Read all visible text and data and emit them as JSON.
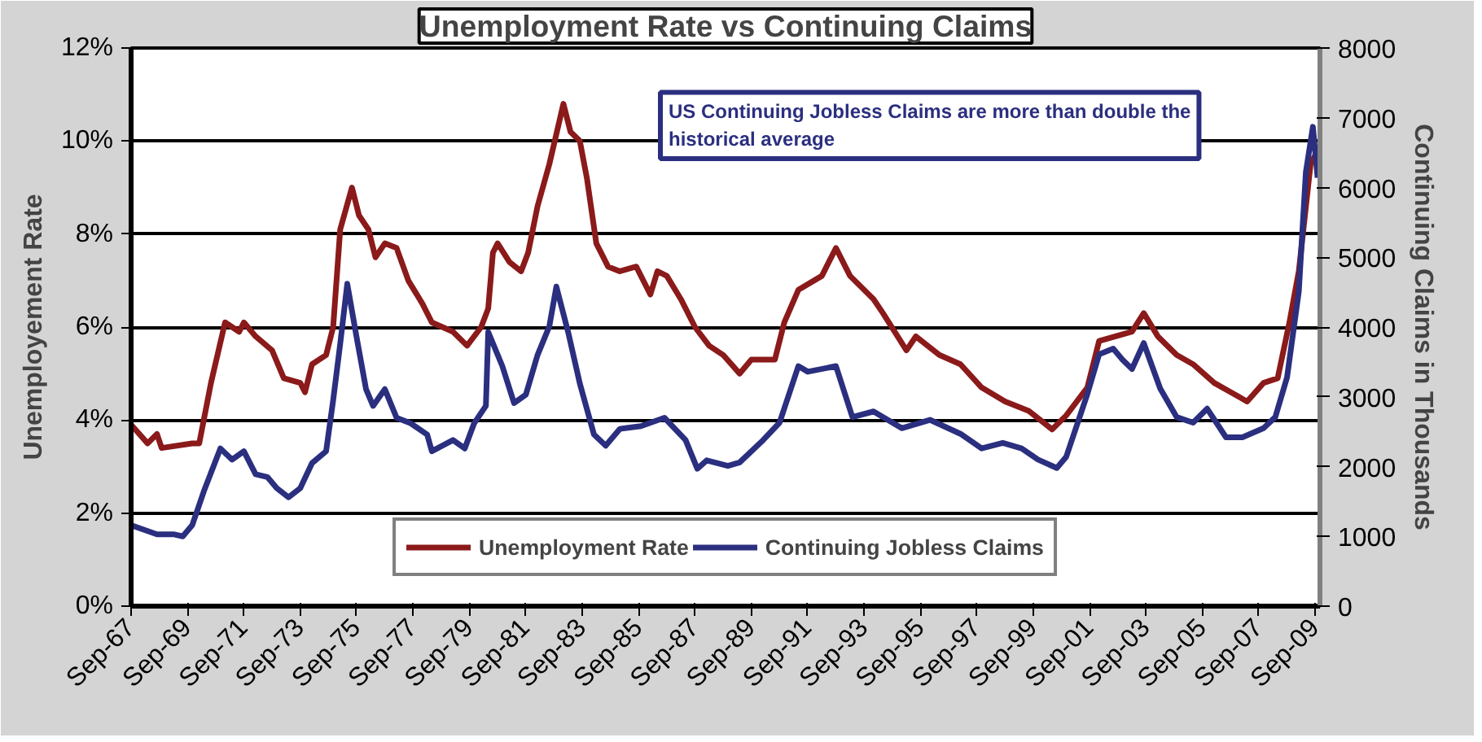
{
  "chart_data": {
    "type": "line",
    "title": "Unemployment Rate vs Continuing Claims",
    "ylabel": "Unemployement Rate",
    "y2label": "Continuing Claims in Thousands",
    "annotations": [
      "US Continuing Jobless Claims are more than double the historical average"
    ],
    "xlim": [
      "1967-09",
      "2009-11"
    ],
    "xticks": [
      {
        "value": "1967-09",
        "label": "Sep-67"
      },
      {
        "value": "1969-09",
        "label": "Sep-69"
      },
      {
        "value": "1971-09",
        "label": "Sep-71"
      },
      {
        "value": "1973-09",
        "label": "Sep-73"
      },
      {
        "value": "1975-09",
        "label": "Sep-75"
      },
      {
        "value": "1977-09",
        "label": "Sep-77"
      },
      {
        "value": "1979-09",
        "label": "Sep-79"
      },
      {
        "value": "1981-09",
        "label": "Sep-81"
      },
      {
        "value": "1983-09",
        "label": "Sep-83"
      },
      {
        "value": "1985-09",
        "label": "Sep-85"
      },
      {
        "value": "1987-09",
        "label": "Sep-87"
      },
      {
        "value": "1989-09",
        "label": "Sep-89"
      },
      {
        "value": "1991-09",
        "label": "Sep-91"
      },
      {
        "value": "1993-09",
        "label": "Sep-93"
      },
      {
        "value": "1995-09",
        "label": "Sep-95"
      },
      {
        "value": "1997-09",
        "label": "Sep-97"
      },
      {
        "value": "1999-09",
        "label": "Sep-99"
      },
      {
        "value": "2001-09",
        "label": "Sep-01"
      },
      {
        "value": "2003-09",
        "label": "Sep-03"
      },
      {
        "value": "2005-09",
        "label": "Sep-05"
      },
      {
        "value": "2007-09",
        "label": "Sep-07"
      },
      {
        "value": "2009-09",
        "label": "Sep-09"
      }
    ],
    "ylim": [
      0,
      12
    ],
    "yticks": [
      {
        "value": 0,
        "label": "0%"
      },
      {
        "value": 2,
        "label": "2%"
      },
      {
        "value": 4,
        "label": "4%"
      },
      {
        "value": 6,
        "label": "6%"
      },
      {
        "value": 8,
        "label": "8%"
      },
      {
        "value": 10,
        "label": "10%"
      },
      {
        "value": 12,
        "label": "12%"
      }
    ],
    "y2lim": [
      0,
      8000
    ],
    "y2ticks": [
      0,
      1000,
      2000,
      3000,
      4000,
      5000,
      6000,
      7000,
      8000
    ],
    "grid": "y",
    "legend": "bottom",
    "line_style": "solid",
    "marker": "none",
    "series": [
      {
        "name": "Unemployment Rate",
        "color": "#8b1a1a",
        "x": [
          "1967-09",
          "1968-04",
          "1968-08",
          "1968-10",
          "1969-11",
          "1970-02",
          "1970-07",
          "1971-01",
          "1971-07",
          "1971-09",
          "1972-02",
          "1972-09",
          "1973-02",
          "1973-09",
          "1973-11",
          "1974-02",
          "1974-08",
          "1974-11",
          "1975-02",
          "1975-07",
          "1975-10",
          "1976-02",
          "1976-05",
          "1976-09",
          "1977-02",
          "1977-07",
          "1978-01",
          "1978-05",
          "1979-02",
          "1979-08",
          "1980-02",
          "1980-05",
          "1980-07",
          "1980-09",
          "1981-02",
          "1981-07",
          "1981-10",
          "1982-02",
          "1982-07",
          "1983-01",
          "1983-04",
          "1983-08",
          "1983-11",
          "1984-03",
          "1984-08",
          "1985-01",
          "1985-08",
          "1986-02",
          "1986-05",
          "1986-09",
          "1987-03",
          "1987-09",
          "1988-03",
          "1988-09",
          "1989-04",
          "1989-09",
          "1990-07",
          "1990-11",
          "1991-05",
          "1992-03",
          "1992-09",
          "1993-03",
          "1994-01",
          "1994-05",
          "1995-03",
          "1995-07",
          "1996-05",
          "1997-02",
          "1997-11",
          "1998-09",
          "1999-07",
          "2000-05",
          "2000-11",
          "2001-08",
          "2002-01",
          "2002-08",
          "2003-03",
          "2003-08",
          "2004-02",
          "2004-10",
          "2005-05",
          "2006-02",
          "2006-09",
          "2007-04",
          "2007-11",
          "2008-05",
          "2008-10",
          "2009-02",
          "2009-07",
          "2009-10"
        ],
        "values": [
          3.9,
          3.5,
          3.7,
          3.4,
          3.5,
          3.5,
          4.8,
          6.1,
          5.9,
          6.1,
          5.8,
          5.5,
          4.9,
          4.8,
          4.6,
          5.2,
          5.4,
          6.0,
          8.1,
          9.0,
          8.4,
          8.1,
          7.5,
          7.8,
          7.7,
          7.0,
          6.5,
          6.1,
          5.9,
          5.6,
          6.0,
          6.4,
          7.6,
          7.8,
          7.4,
          7.2,
          7.6,
          8.6,
          9.5,
          10.8,
          10.2,
          10.0,
          9.2,
          7.8,
          7.3,
          7.2,
          7.3,
          6.7,
          7.2,
          7.1,
          6.6,
          6.0,
          5.6,
          5.4,
          5.0,
          5.3,
          5.3,
          6.1,
          6.8,
          7.1,
          7.7,
          7.1,
          6.6,
          6.3,
          5.5,
          5.8,
          5.4,
          5.2,
          4.7,
          4.4,
          4.2,
          3.8,
          4.1,
          4.7,
          5.7,
          5.8,
          5.9,
          6.3,
          5.8,
          5.4,
          5.2,
          4.8,
          4.6,
          4.4,
          4.8,
          4.9,
          6.1,
          7.2,
          9.5,
          9.8
        ]
      },
      {
        "name": "Continuing Jobless Claims",
        "color": "#2b2f7f",
        "axis": "y2",
        "x": [
          "1967-09",
          "1968-08",
          "1969-03",
          "1969-07",
          "1969-11",
          "1970-04",
          "1970-11",
          "1971-04",
          "1971-09",
          "1972-02",
          "1972-07",
          "1972-11",
          "1973-04",
          "1973-09",
          "1974-02",
          "1974-08",
          "1974-11",
          "1975-02",
          "1975-05",
          "1975-09",
          "1976-01",
          "1976-04",
          "1976-09",
          "1977-02",
          "1977-08",
          "1978-03",
          "1978-05",
          "1979-02",
          "1979-07",
          "1979-11",
          "1980-04",
          "1980-05",
          "1980-11",
          "1981-04",
          "1981-09",
          "1982-02",
          "1982-07",
          "1982-10",
          "1983-03",
          "1983-08",
          "1984-02",
          "1984-07",
          "1985-01",
          "1985-10",
          "1986-08",
          "1987-05",
          "1987-10",
          "1988-02",
          "1988-11",
          "1989-04",
          "1990-02",
          "1990-09",
          "1991-05",
          "1991-09",
          "1992-09",
          "1993-04",
          "1994-01",
          "1995-01",
          "1996-01",
          "1997-02",
          "1997-11",
          "1998-08",
          "1999-04",
          "1999-11",
          "2000-07",
          "2000-11",
          "2001-08",
          "2002-01",
          "2002-07",
          "2002-11",
          "2003-03",
          "2003-08",
          "2004-03",
          "2004-10",
          "2005-05",
          "2005-11",
          "2006-07",
          "2007-02",
          "2007-11",
          "2008-04",
          "2008-09",
          "2009-02",
          "2009-05",
          "2009-08",
          "2009-10"
        ],
        "values": [
          1160,
          1030,
          1030,
          1000,
          1160,
          1650,
          2260,
          2100,
          2220,
          1890,
          1850,
          1690,
          1560,
          1690,
          2050,
          2220,
          2950,
          3760,
          4620,
          3850,
          3110,
          2870,
          3110,
          2700,
          2620,
          2460,
          2220,
          2380,
          2260,
          2620,
          2870,
          3930,
          3440,
          2910,
          3030,
          3600,
          4010,
          4580,
          3930,
          3190,
          2460,
          2300,
          2540,
          2580,
          2700,
          2380,
          1970,
          2090,
          2010,
          2060,
          2380,
          2630,
          3440,
          3360,
          3440,
          2710,
          2790,
          2550,
          2670,
          2470,
          2260,
          2340,
          2260,
          2100,
          1980,
          2140,
          3040,
          3610,
          3690,
          3530,
          3400,
          3770,
          3120,
          2710,
          2630,
          2830,
          2420,
          2420,
          2550,
          2710,
          3280,
          4510,
          6220,
          6870,
          6140
        ]
      }
    ]
  }
}
